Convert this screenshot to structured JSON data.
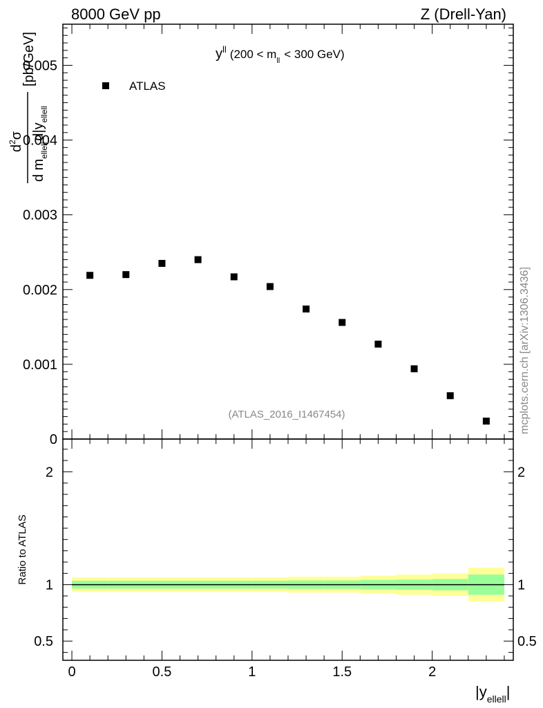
{
  "header": {
    "left": "8000 GeV pp",
    "right": "Z (Drell-Yan)"
  },
  "plot_title": {
    "main": "y",
    "sup": "ll",
    "paren_open": "(200 < m",
    "sub": "ll",
    "paren_close": "< 300 GeV)"
  },
  "legend": {
    "label": "ATLAS",
    "marker": "black-square"
  },
  "watermark": "(ATLAS_2016_I1467454)",
  "side_text": "mcplots.cern.ch [arXiv:1306.3436]",
  "main_ylabel": {
    "num_d": "d",
    "num_sup": "2",
    "num_sigma": "σ",
    "den_a": "d m",
    "den_sub1": "ellell",
    "den_b": "d|y",
    "den_sub2": "ellell",
    "unit": "[pb/GeV]"
  },
  "ratio_ylabel": "Ratio to ATLAS",
  "xlabel": {
    "main": "|y",
    "sub": "ellell",
    "end": "|"
  },
  "colors": {
    "marker": "#000000",
    "band_inner": "#99ff99",
    "band_outer": "#ffff99",
    "watermark": "#888888"
  },
  "chart_data": [
    {
      "type": "scatter",
      "name": "ATLAS",
      "x": [
        0.1,
        0.3,
        0.5,
        0.7,
        0.9,
        1.1,
        1.3,
        1.5,
        1.7,
        1.9,
        2.1,
        2.3
      ],
      "y": [
        0.00219,
        0.0022,
        0.00235,
        0.0024,
        0.00217,
        0.00204,
        0.00174,
        0.00156,
        0.00127,
        0.00094,
        0.00058,
        0.00024
      ],
      "xlim": [
        -0.05,
        2.45
      ],
      "ylim": [
        0,
        0.00555
      ],
      "yticks": [
        0,
        0.001,
        0.002,
        0.003,
        0.004,
        0.005
      ],
      "ytick_labels": [
        "0",
        "0.001",
        "0.002",
        "0.003",
        "0.004",
        "0.005"
      ]
    },
    {
      "type": "area",
      "name": "Ratio to ATLAS",
      "bin_edges": [
        0,
        0.2,
        0.4,
        0.6,
        0.8,
        1.0,
        1.2,
        1.4,
        1.6,
        1.8,
        2.0,
        2.2,
        2.4
      ],
      "inner_low": [
        0.965,
        0.965,
        0.965,
        0.965,
        0.965,
        0.965,
        0.963,
        0.963,
        0.958,
        0.955,
        0.95,
        0.91
      ],
      "inner_high": [
        1.035,
        1.035,
        1.035,
        1.035,
        1.035,
        1.035,
        1.037,
        1.037,
        1.042,
        1.045,
        1.05,
        1.09
      ],
      "outer_low": [
        0.935,
        0.935,
        0.935,
        0.935,
        0.935,
        0.935,
        0.93,
        0.93,
        0.92,
        0.91,
        0.9,
        0.85
      ],
      "outer_high": [
        1.065,
        1.065,
        1.065,
        1.065,
        1.065,
        1.065,
        1.07,
        1.07,
        1.08,
        1.09,
        1.1,
        1.15
      ],
      "reference": 1,
      "xlim": [
        -0.05,
        2.45
      ],
      "ylim": [
        0.33,
        2.29
      ],
      "yticks": [
        0.5,
        1,
        2
      ],
      "ytick_labels": [
        "0.5",
        "1",
        "2"
      ],
      "xticks": [
        0,
        0.5,
        1,
        1.5,
        2
      ],
      "xtick_labels": [
        "0",
        "0.5",
        "1",
        "1.5",
        "2"
      ]
    }
  ]
}
